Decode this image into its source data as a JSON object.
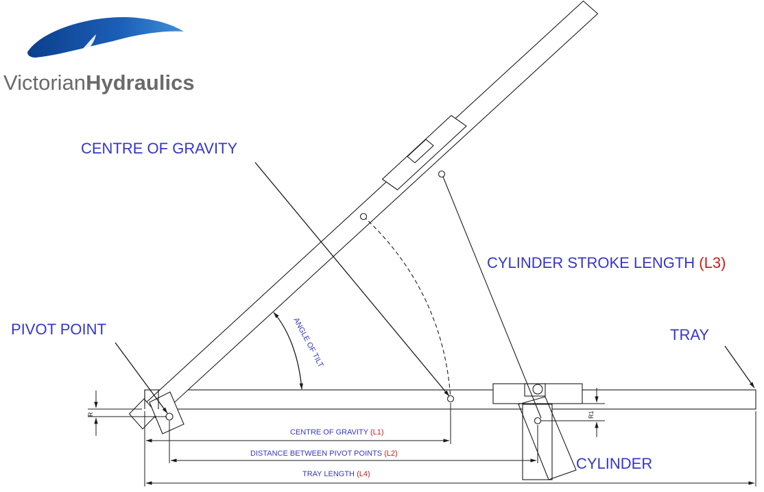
{
  "logo": {
    "brand_light": "Victorian",
    "brand_bold": "Hydraulics",
    "colors": {
      "swoosh_dark": "#0b3f8c",
      "swoosh_light": "#3f8fd8",
      "text": "#6a6a6a"
    }
  },
  "labels": {
    "centre_of_gravity": "CENTRE OF GRAVITY",
    "cylinder_stroke_length": "CYLINDER STROKE LENGTH",
    "cylinder_stroke_length_ref": "(L3)",
    "pivot_point": "PIVOT POINT",
    "tray": "TRAY",
    "cylinder": "CYLINDER",
    "angle_of_tilt": "ANGLE OF TILT"
  },
  "dimensions": {
    "l1_label": "CENTRE OF GRAVITY",
    "l1_ref": "(L1)",
    "l2_label": "DISTANCE BETWEEN PIVOT POINTS",
    "l2_ref": "(L2)",
    "l4_label": "TRAY LENGTH",
    "l4_ref": "(L4)",
    "r_label": "R",
    "r1_label": "R1"
  },
  "colors": {
    "label_blue": "#3535c8",
    "ref_red": "#d01818",
    "line": "#1a1a1a"
  }
}
